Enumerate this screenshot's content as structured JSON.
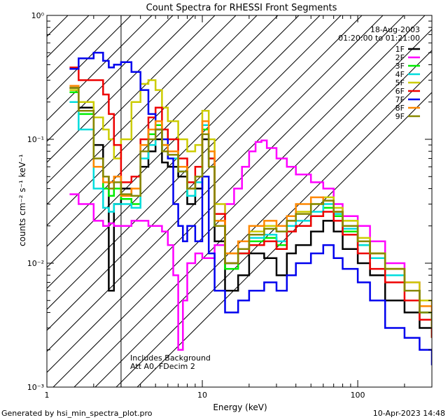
{
  "chart_data": {
    "type": "line",
    "title": "Count Spectra for RHESSI Front Segments",
    "xlabel": "Energy (keV)",
    "ylabel": "counts cm⁻² s⁻¹ keV⁻¹",
    "xscale": "log",
    "yscale": "log",
    "xlim": [
      1,
      300
    ],
    "ylim": [
      0.001,
      1
    ],
    "x_ticks": [
      1,
      10,
      100
    ],
    "x_tick_labels": [
      "1",
      "10",
      "100"
    ],
    "y_ticks": [
      0.001,
      0.01,
      0.1,
      1
    ],
    "y_tick_labels": [
      "10⁻³",
      "10⁻²",
      "10⁻¹",
      "10⁰"
    ],
    "hatched_region": {
      "from": 1,
      "to": 3
    },
    "date": "18-Aug-2003",
    "time_range": "01:20:00 to 01:21:00",
    "notes": [
      "Includes Background",
      "Att A0, FDecim 2"
    ],
    "footer_left": "Generated by hsi_min_spectra_plot.pro",
    "footer_right": "10-Apr-2023 14:48",
    "series": [
      {
        "name": "1F",
        "color": "#000000",
        "x": [
          1.4,
          1.6,
          2.0,
          2.3,
          2.5,
          2.7,
          3.0,
          3.5,
          4.0,
          4.5,
          5.0,
          5.5,
          6.0,
          7.0,
          8.0,
          9.0,
          10.0,
          11.0,
          12.0,
          14.0,
          17.0,
          20.0,
          25.0,
          30.0,
          35.0,
          40.0,
          50.0,
          60.0,
          70.0,
          80.0,
          100.0,
          120.0,
          150.0,
          200.0,
          250.0,
          300.0
        ],
        "y": [
          0.26,
          0.18,
          0.09,
          0.05,
          0.006,
          0.03,
          0.04,
          0.035,
          0.06,
          0.08,
          0.1,
          0.065,
          0.06,
          0.05,
          0.03,
          0.04,
          0.1,
          0.06,
          0.015,
          0.006,
          0.008,
          0.012,
          0.011,
          0.008,
          0.012,
          0.014,
          0.018,
          0.022,
          0.018,
          0.013,
          0.01,
          0.008,
          0.005,
          0.004,
          0.003,
          0.0025
        ]
      },
      {
        "name": "2F",
        "color": "#ff00ff",
        "x": [
          1.4,
          1.6,
          2.0,
          2.3,
          2.5,
          2.7,
          3.0,
          3.5,
          4.0,
          4.5,
          5.0,
          5.5,
          6.0,
          6.5,
          7.0,
          7.5,
          8.0,
          9.0,
          10.0,
          12.0,
          14.0,
          16.0,
          18.0,
          20.0,
          22.0,
          24.0,
          26.0,
          30.0,
          35.0,
          40.0,
          50.0,
          60.0,
          70.0,
          80.0,
          100.0,
          120.0,
          150.0,
          200.0,
          250.0,
          300.0
        ],
        "y": [
          0.036,
          0.03,
          0.022,
          0.02,
          0.021,
          0.02,
          0.02,
          0.022,
          0.022,
          0.02,
          0.02,
          0.018,
          0.014,
          0.008,
          0.002,
          0.005,
          0.01,
          0.012,
          0.011,
          0.014,
          0.03,
          0.04,
          0.06,
          0.08,
          0.095,
          0.098,
          0.085,
          0.07,
          0.06,
          0.052,
          0.045,
          0.04,
          0.03,
          0.024,
          0.02,
          0.015,
          0.01,
          0.007,
          0.005,
          0.004
        ]
      },
      {
        "name": "3F",
        "color": "#00ee00",
        "x": [
          1.4,
          1.6,
          2.0,
          2.3,
          2.5,
          2.7,
          3.0,
          3.5,
          4.0,
          4.5,
          5.0,
          5.5,
          6.0,
          7.0,
          8.0,
          9.0,
          10.0,
          11.0,
          12.0,
          14.0,
          17.0,
          20.0,
          25.0,
          30.0,
          35.0,
          40.0,
          50.0,
          60.0,
          70.0,
          80.0,
          100.0,
          120.0,
          150.0,
          200.0,
          250.0,
          300.0
        ],
        "y": [
          0.24,
          0.16,
          0.06,
          0.04,
          0.035,
          0.04,
          0.033,
          0.03,
          0.08,
          0.11,
          0.13,
          0.09,
          0.08,
          0.06,
          0.035,
          0.05,
          0.12,
          0.07,
          0.02,
          0.009,
          0.012,
          0.015,
          0.016,
          0.014,
          0.018,
          0.02,
          0.024,
          0.028,
          0.024,
          0.018,
          0.014,
          0.011,
          0.008,
          0.006,
          0.004,
          0.0025
        ]
      },
      {
        "name": "4F",
        "color": "#00dddd",
        "x": [
          1.4,
          1.6,
          2.0,
          2.3,
          2.5,
          2.7,
          3.0,
          3.5,
          4.0,
          4.5,
          5.0,
          5.5,
          6.0,
          7.0,
          8.0,
          9.0,
          10.0,
          11.0,
          12.0,
          14.0,
          17.0,
          20.0,
          25.0,
          30.0,
          35.0,
          40.0,
          50.0,
          60.0,
          70.0,
          80.0,
          100.0,
          120.0,
          150.0,
          200.0,
          250.0,
          300.0
        ],
        "y": [
          0.2,
          0.12,
          0.04,
          0.028,
          0.026,
          0.03,
          0.03,
          0.028,
          0.07,
          0.09,
          0.12,
          0.08,
          0.07,
          0.055,
          0.035,
          0.045,
          0.13,
          0.07,
          0.02,
          0.01,
          0.013,
          0.016,
          0.017,
          0.015,
          0.02,
          0.022,
          0.026,
          0.03,
          0.025,
          0.019,
          0.014,
          0.011,
          0.008,
          0.006,
          0.004,
          0.003
        ]
      },
      {
        "name": "5F",
        "color": "#cccc00",
        "x": [
          1.4,
          1.6,
          2.0,
          2.3,
          2.5,
          2.7,
          3.0,
          3.5,
          4.0,
          4.5,
          5.0,
          5.5,
          6.0,
          7.0,
          8.0,
          9.0,
          10.0,
          11.0,
          12.0,
          14.0,
          17.0,
          20.0,
          25.0,
          30.0,
          35.0,
          40.0,
          50.0,
          60.0,
          70.0,
          80.0,
          100.0,
          120.0,
          150.0,
          200.0,
          250.0,
          300.0
        ],
        "y": [
          0.25,
          0.2,
          0.15,
          0.12,
          0.1,
          0.07,
          0.1,
          0.2,
          0.28,
          0.3,
          0.25,
          0.18,
          0.14,
          0.1,
          0.08,
          0.09,
          0.17,
          0.1,
          0.03,
          0.012,
          0.015,
          0.018,
          0.02,
          0.018,
          0.022,
          0.026,
          0.03,
          0.034,
          0.028,
          0.022,
          0.016,
          0.012,
          0.009,
          0.007,
          0.005,
          0.004
        ]
      },
      {
        "name": "6F",
        "color": "#ee0000",
        "x": [
          1.4,
          1.6,
          2.0,
          2.3,
          2.5,
          2.7,
          3.0,
          3.5,
          4.0,
          4.5,
          5.0,
          5.5,
          6.0,
          7.0,
          8.0,
          9.0,
          10.0,
          11.0,
          12.0,
          14.0,
          17.0,
          20.0,
          25.0,
          30.0,
          35.0,
          40.0,
          50.0,
          60.0,
          70.0,
          80.0,
          100.0,
          120.0,
          150.0,
          200.0,
          250.0,
          300.0
        ],
        "y": [
          0.38,
          0.3,
          0.3,
          0.23,
          0.16,
          0.09,
          0.045,
          0.05,
          0.1,
          0.15,
          0.18,
          0.12,
          0.1,
          0.07,
          0.045,
          0.06,
          0.11,
          0.07,
          0.025,
          0.01,
          0.012,
          0.014,
          0.015,
          0.013,
          0.018,
          0.02,
          0.024,
          0.026,
          0.022,
          0.017,
          0.012,
          0.009,
          0.007,
          0.005,
          0.0035,
          0.0025
        ]
      },
      {
        "name": "7F",
        "color": "#0000ee",
        "x": [
          1.4,
          1.6,
          2.0,
          2.3,
          2.5,
          2.7,
          3.0,
          3.5,
          4.0,
          4.5,
          5.0,
          5.5,
          6.0,
          6.5,
          7.0,
          7.5,
          8.0,
          9.0,
          10.0,
          11.0,
          12.0,
          14.0,
          17.0,
          20.0,
          25.0,
          30.0,
          35.0,
          40.0,
          50.0,
          60.0,
          70.0,
          80.0,
          100.0,
          120.0,
          150.0,
          200.0,
          250.0,
          300.0
        ],
        "y": [
          0.37,
          0.45,
          0.5,
          0.43,
          0.38,
          0.4,
          0.42,
          0.35,
          0.25,
          0.16,
          0.12,
          0.1,
          0.07,
          0.03,
          0.02,
          0.015,
          0.02,
          0.015,
          0.05,
          0.012,
          0.006,
          0.004,
          0.005,
          0.006,
          0.007,
          0.006,
          0.008,
          0.01,
          0.012,
          0.014,
          0.011,
          0.009,
          0.007,
          0.005,
          0.003,
          0.0025,
          0.002,
          0.0015
        ]
      },
      {
        "name": "8F",
        "color": "#ff8800",
        "x": [
          1.4,
          1.6,
          2.0,
          2.3,
          2.5,
          2.7,
          3.0,
          3.5,
          4.0,
          4.5,
          5.0,
          5.5,
          6.0,
          7.0,
          8.0,
          9.0,
          10.0,
          11.0,
          12.0,
          14.0,
          17.0,
          20.0,
          25.0,
          30.0,
          35.0,
          40.0,
          50.0,
          60.0,
          70.0,
          80.0,
          100.0,
          120.0,
          150.0,
          200.0,
          250.0,
          300.0
        ],
        "y": [
          0.27,
          0.17,
          0.06,
          0.045,
          0.045,
          0.05,
          0.035,
          0.04,
          0.09,
          0.12,
          0.14,
          0.09,
          0.08,
          0.06,
          0.04,
          0.05,
          0.14,
          0.08,
          0.022,
          0.012,
          0.015,
          0.02,
          0.022,
          0.02,
          0.024,
          0.03,
          0.034,
          0.032,
          0.026,
          0.02,
          0.015,
          0.012,
          0.009,
          0.006,
          0.0045,
          0.003
        ]
      },
      {
        "name": "9F",
        "color": "#888800",
        "x": [
          1.4,
          1.6,
          2.0,
          2.3,
          2.5,
          2.7,
          3.0,
          3.5,
          4.0,
          4.5,
          5.0,
          5.5,
          6.0,
          7.0,
          8.0,
          9.0,
          10.0,
          11.0,
          12.0,
          14.0,
          17.0,
          20.0,
          25.0,
          30.0,
          35.0,
          40.0,
          50.0,
          60.0,
          70.0,
          80.0,
          100.0,
          120.0,
          150.0,
          200.0,
          250.0,
          300.0
        ],
        "y": [
          0.26,
          0.17,
          0.07,
          0.05,
          0.04,
          0.045,
          0.036,
          0.035,
          0.08,
          0.1,
          0.12,
          0.08,
          0.075,
          0.055,
          0.04,
          0.05,
          0.11,
          0.06,
          0.02,
          0.01,
          0.013,
          0.017,
          0.019,
          0.018,
          0.022,
          0.025,
          0.03,
          0.032,
          0.026,
          0.02,
          0.015,
          0.012,
          0.009,
          0.006,
          0.004,
          0.003
        ]
      }
    ]
  }
}
